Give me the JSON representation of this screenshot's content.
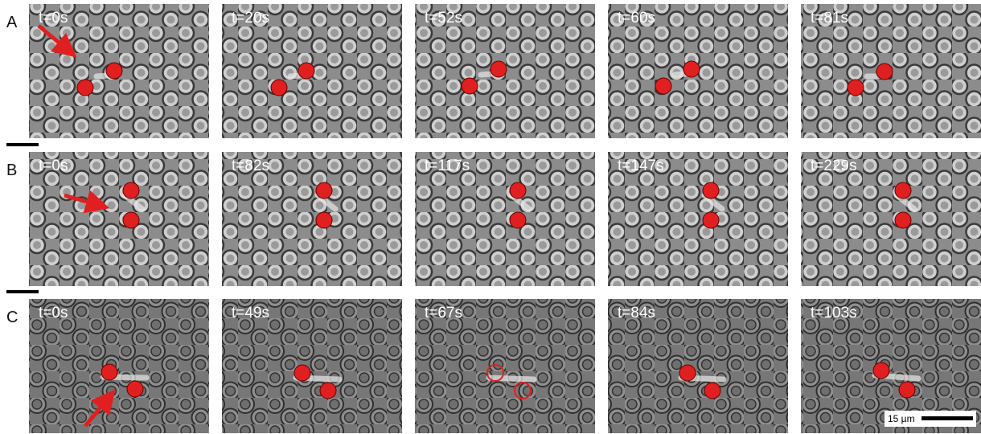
{
  "rows": [
    {
      "label": "A",
      "frames": [
        "t=0s",
        "t=20s",
        "t=52s",
        "t=60s",
        "t=81s"
      ]
    },
    {
      "label": "B",
      "frames": [
        "t=0s",
        "t=82s",
        "t=117s",
        "t=147s",
        "t=229s"
      ]
    },
    {
      "label": "C",
      "frames": [
        "t=0s",
        "t=49s",
        "t=67s",
        "t=84s",
        "t=103s"
      ]
    }
  ],
  "scale_bar": "15 µm"
}
